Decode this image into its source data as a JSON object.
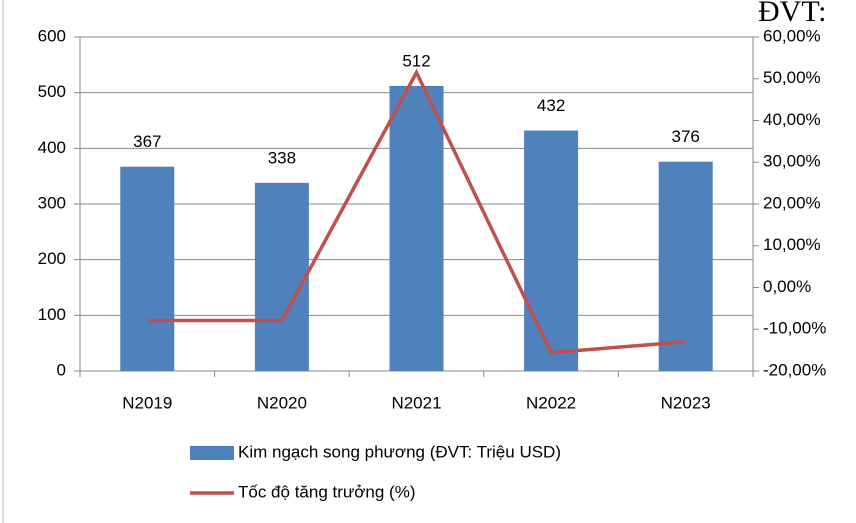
{
  "chart_data": {
    "type": "bar_line",
    "annotation": "ĐVT:",
    "categories": [
      "N2019",
      "N2020",
      "N2021",
      "N2022",
      "N2023"
    ],
    "series": [
      {
        "name": "Kim ngạch song phương (ĐVT: Triệu USD)",
        "type": "bar",
        "color": "#4f81bd",
        "values": [
          367,
          338,
          512,
          432,
          376
        ]
      },
      {
        "name": "Tốc độ tăng trưởng (%)",
        "type": "line",
        "axis": "y2",
        "color": "#c0504d",
        "values": [
          -7.9,
          -7.9,
          51.5,
          -15.6,
          -13.0
        ]
      }
    ],
    "ylim": [
      0,
      600
    ],
    "yticks": [
      0,
      100,
      200,
      300,
      400,
      500,
      600
    ],
    "y2lim": [
      -20,
      60
    ],
    "y2ticks": [
      {
        "value": -20,
        "label": "-20,00%"
      },
      {
        "value": -10,
        "label": "-10,00%"
      },
      {
        "value": 0,
        "label": "0,00%"
      },
      {
        "value": 10,
        "label": "10,00%"
      },
      {
        "value": 20,
        "label": "20,00%"
      },
      {
        "value": 30,
        "label": "30,00%"
      },
      {
        "value": 40,
        "label": "40,00%"
      },
      {
        "value": 50,
        "label": "50,00%"
      },
      {
        "value": 60,
        "label": "60,00%"
      }
    ],
    "grid": true,
    "legend": "bottom"
  }
}
